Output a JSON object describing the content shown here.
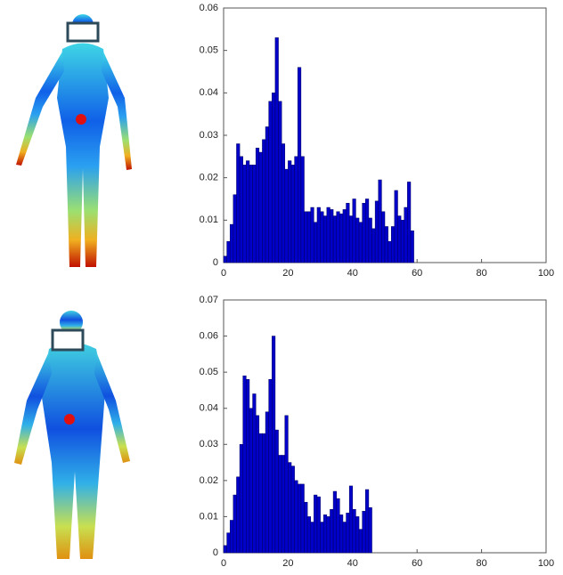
{
  "chart_data": [
    {
      "type": "histogram",
      "color": "#0000c8",
      "edgecolor": "#000060",
      "bins": [
        0,
        1,
        2,
        3,
        4,
        5,
        6,
        7,
        8,
        9,
        10,
        11,
        12,
        13,
        14,
        15,
        16,
        17,
        18,
        19,
        20,
        21,
        22,
        23,
        24,
        25,
        26,
        27,
        28,
        29,
        30,
        31,
        32,
        33,
        34,
        35,
        36,
        37,
        38,
        39,
        40,
        41,
        42,
        43,
        44,
        45,
        46,
        47,
        48,
        49,
        50,
        51,
        52,
        53,
        54,
        55,
        56,
        57,
        58,
        59
      ],
      "values": [
        0.0015,
        0.005,
        0.009,
        0.016,
        0.028,
        0.025,
        0.023,
        0.024,
        0.023,
        0.023,
        0.027,
        0.026,
        0.029,
        0.032,
        0.038,
        0.04,
        0.053,
        0.038,
        0.028,
        0.022,
        0.024,
        0.023,
        0.025,
        0.046,
        0.025,
        0.012,
        0.012,
        0.013,
        0.0095,
        0.013,
        0.012,
        0.011,
        0.013,
        0.0125,
        0.011,
        0.012,
        0.0115,
        0.0125,
        0.014,
        0.011,
        0.015,
        0.0105,
        0.0095,
        0.014,
        0.015,
        0.0105,
        0.008,
        0.0145,
        0.0195,
        0.012,
        0.0085,
        0.005,
        0.0085,
        0.017,
        0.011,
        0.01,
        0.013,
        0.019,
        0.0075
      ],
      "xlim": [
        0,
        100
      ],
      "xticks": [
        0,
        20,
        40,
        60,
        80,
        100
      ],
      "ylim": [
        0,
        0.06
      ],
      "yticks": [
        0,
        0.01,
        0.02,
        0.03,
        0.04,
        0.05,
        0.06
      ]
    },
    {
      "type": "histogram",
      "color": "#0000c8",
      "edgecolor": "#000060",
      "bins": [
        0,
        1,
        2,
        3,
        4,
        5,
        6,
        7,
        8,
        9,
        10,
        11,
        12,
        13,
        14,
        15,
        16,
        17,
        18,
        19,
        20,
        21,
        22,
        23,
        24,
        25,
        26,
        27,
        28,
        29,
        30,
        31,
        32,
        33,
        34,
        35,
        36,
        37,
        38,
        39,
        40,
        41,
        42,
        43,
        44,
        45,
        46
      ],
      "values": [
        0.002,
        0.0055,
        0.009,
        0.016,
        0.021,
        0.03,
        0.049,
        0.048,
        0.04,
        0.044,
        0.038,
        0.033,
        0.033,
        0.039,
        0.048,
        0.06,
        0.034,
        0.027,
        0.027,
        0.038,
        0.025,
        0.024,
        0.02,
        0.019,
        0.019,
        0.014,
        0.01,
        0.0085,
        0.016,
        0.0155,
        0.0085,
        0.0105,
        0.01,
        0.012,
        0.017,
        0.015,
        0.0105,
        0.0085,
        0.011,
        0.0185,
        0.012,
        0.01,
        0.0065,
        0.0115,
        0.0175,
        0.0125
      ],
      "xlim": [
        0,
        100
      ],
      "xticks": [
        0,
        20,
        40,
        60,
        80,
        100
      ],
      "ylim": [
        0,
        0.07
      ],
      "yticks": [
        0,
        0.01,
        0.02,
        0.03,
        0.04,
        0.05,
        0.06,
        0.07
      ]
    }
  ]
}
